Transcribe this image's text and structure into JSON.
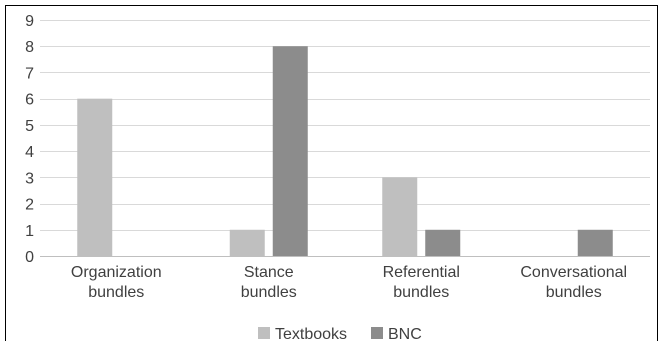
{
  "chart_data": {
    "type": "bar",
    "categories": [
      [
        "Organization",
        "bundles"
      ],
      [
        "Stance",
        "bundles"
      ],
      [
        "Referential",
        "bundles"
      ],
      [
        "Conversational",
        "bundles"
      ]
    ],
    "series": [
      {
        "name": "Textbooks",
        "values": [
          6,
          1,
          3,
          0
        ],
        "color": "#bfbfbf"
      },
      {
        "name": "BNC",
        "values": [
          0,
          8,
          1,
          1
        ],
        "color": "#8c8c8c"
      }
    ],
    "ylim": [
      0,
      9
    ],
    "yticks": [
      0,
      1,
      2,
      3,
      4,
      5,
      6,
      7,
      8,
      9
    ],
    "grid": true,
    "legend": "bottom",
    "colors": {
      "grid": "#d9d9d9",
      "axis": "#bfbfbf",
      "frame": "#000000",
      "text": "#404040"
    }
  }
}
